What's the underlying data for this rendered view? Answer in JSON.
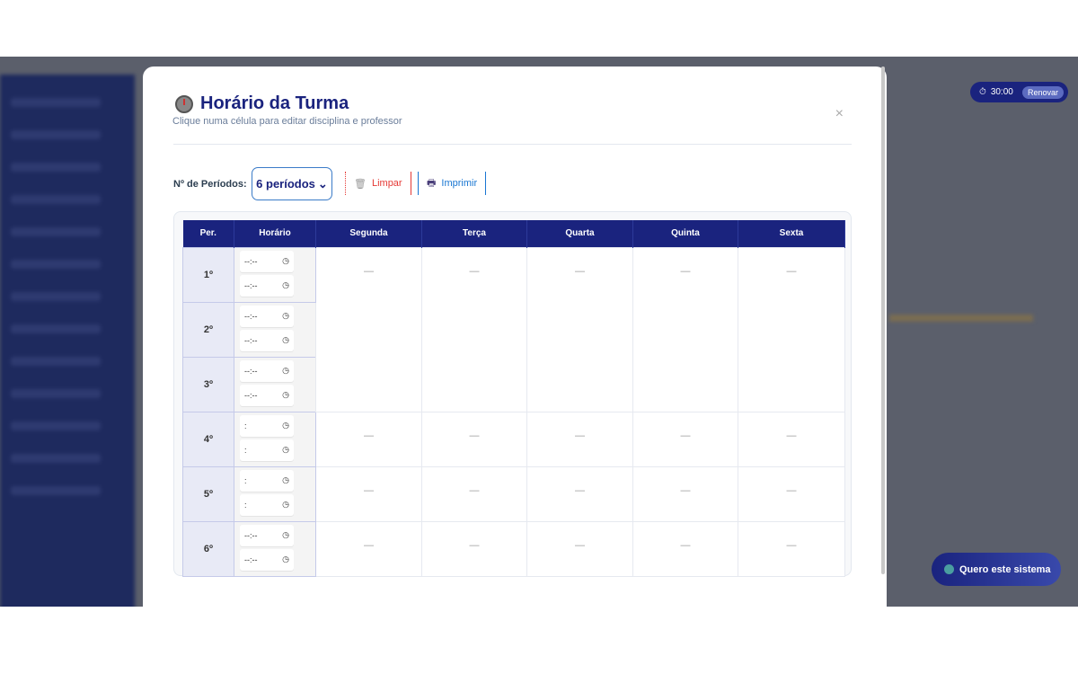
{
  "modal": {
    "title": "Horário da Turma",
    "subtitle": "Clique numa célula para editar disciplina e professor",
    "close": "×"
  },
  "controls": {
    "periods_label": "Nº de Períodos:",
    "periods_value": "6 períodos",
    "clear": "Limpar",
    "print": "Imprimir"
  },
  "table": {
    "headers": [
      "Per.",
      "Horário",
      "Segunda",
      "Terça",
      "Quarta",
      "Quinta",
      "Sexta"
    ],
    "rows": [
      {
        "per": "1º",
        "start": "--:--",
        "end": "--:--"
      },
      {
        "per": "2º",
        "start": "--:--",
        "end": "--:--"
      },
      {
        "per": "3º",
        "start": "--:--",
        "end": "--:--"
      },
      {
        "per": "4º",
        "start": ":",
        "end": ":"
      },
      {
        "per": "5º",
        "start": ":",
        "end": ":"
      },
      {
        "per": "6º",
        "start": "--:--",
        "end": "--:--"
      }
    ],
    "empty": "—"
  },
  "timer": {
    "value": "30:00",
    "renew": "Renovar"
  },
  "cta": {
    "label": "Quero este sistema"
  },
  "colors": {
    "primary": "#1a237e",
    "danger": "#e53935",
    "link": "#1976d2"
  }
}
